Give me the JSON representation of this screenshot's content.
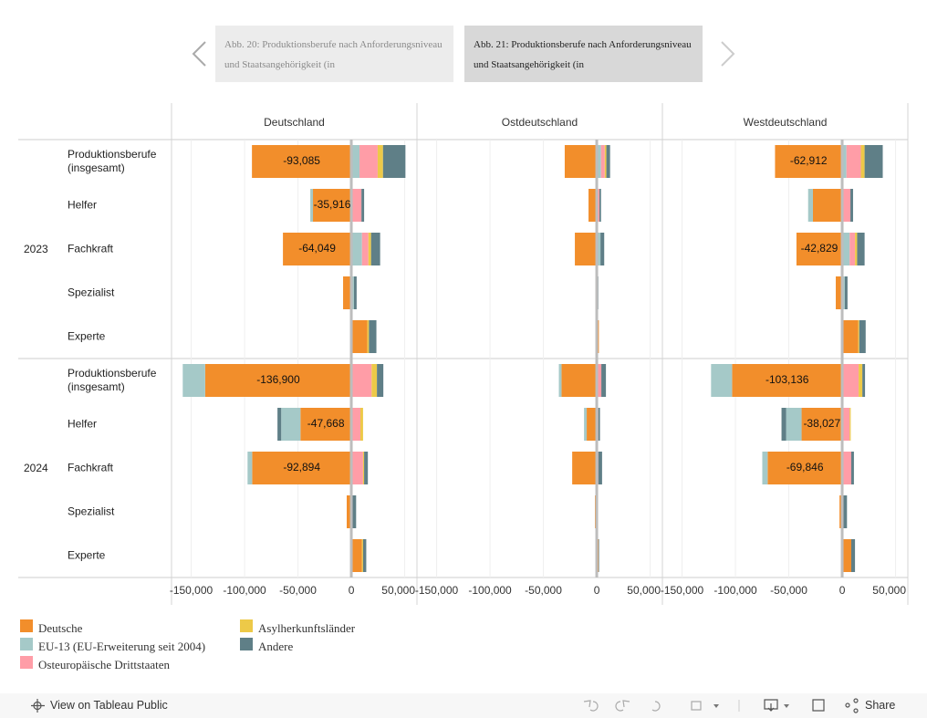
{
  "nav": {
    "tabs": [
      "Abb. 20: Produktionsberufe nach Anforderungsniveau und Staatsangehörigkeit (in",
      "Abb. 21: Produktionsberufe nach Anforderungsniveau und Staatsangehörigkeit (in"
    ]
  },
  "chart_data": {
    "type": "bar",
    "orientation": "horizontal",
    "stacked": true,
    "years": [
      "2023",
      "2024"
    ],
    "categories": [
      "Produktionsberufe (insgesamt)",
      "Helfer",
      "Fachkraft",
      "Spezialist",
      "Experte"
    ],
    "series": [
      {
        "name": "Deutsche",
        "color": "#f28e2b"
      },
      {
        "name": "EU-13 (EU-Erweiterung seit 2004)",
        "color": "#a5c9c8"
      },
      {
        "name": "Osteuropäische Drittstaaten",
        "color": "#ff9da7"
      },
      {
        "name": "Asylherkunftsländer",
        "color": "#edc948"
      },
      {
        "name": "Andere",
        "color": "#5f7f87"
      }
    ],
    "xlim": [
      -168400,
      61500
    ],
    "xticks": [
      {
        "value": -150000,
        "label": "-150,000"
      },
      {
        "value": -100000,
        "label": "-100,000"
      },
      {
        "value": -50000,
        "label": "-50,000"
      },
      0,
      {
        "value": 50000,
        "label": "50,000"
      }
    ],
    "grid": true,
    "panels": [
      {
        "title": "Deutschland",
        "series": [
          {
            "values": [
              -93085,
              -35916,
              -64049,
              -7700,
              15000,
              -136900,
              -47668,
              -92894,
              -4300,
              10000
            ],
            "value_labels": [
              "-93,085",
              "-35,916",
              "-64,049",
              null,
              null,
              "-136,900",
              "-47,668",
              "-92,894",
              null,
              null
            ]
          },
          {
            "values": [
              7700,
              -2500,
              10000,
              2500,
              0,
              -21000,
              -18000,
              -4300,
              1000,
              0
            ]
          },
          {
            "values": [
              17000,
              9500,
              6000,
              0,
              0,
              19000,
              8500,
              11000,
              0,
              0
            ]
          },
          {
            "values": [
              5000,
              0,
              2500,
              0,
              1500,
              5000,
              2500,
              1000,
              0,
              1000
            ]
          },
          {
            "values": [
              21000,
              2500,
              8500,
              2500,
              7000,
              6000,
              -3500,
              3500,
              3500,
              3000
            ]
          }
        ]
      },
      {
        "title": "Ostdeutschland",
        "series": [
          {
            "values": [
              -30000,
              -7700,
              -20500,
              -1000,
              2000,
              -33000,
              -9400,
              -23000,
              -1700,
              1700
            ]
          },
          {
            "values": [
              4000,
              0,
              3500,
              0,
              0,
              -2500,
              -2500,
              0,
              0,
              0
            ]
          },
          {
            "values": [
              3500,
              2500,
              0,
              0,
              0,
              4300,
              1500,
              1500,
              0,
              0
            ]
          },
          {
            "values": [
              1500,
              0,
              0,
              0,
              0,
              0,
              0,
              0,
              0,
              0
            ]
          },
          {
            "values": [
              3500,
              1500,
              3500,
              1500,
              0,
              4300,
              1500,
              3500,
              1000,
              500
            ]
          }
        ]
      },
      {
        "title": "Westdeutschland",
        "series": [
          {
            "values": [
              -62912,
              -27400,
              -42829,
              -6000,
              15000,
              -103136,
              -38027,
              -69846,
              -2500,
              8500
            ],
            "value_labels": [
              "-62,912",
              null,
              "-42,829",
              null,
              null,
              "-103,136",
              "-38,027",
              "-69,846",
              null,
              null
            ]
          },
          {
            "values": [
              4000,
              -4500,
              7000,
              2500,
              0,
              -19700,
              -14500,
              -5000,
              1000,
              0
            ]
          },
          {
            "values": [
              13500,
              7700,
              5000,
              0,
              0,
              15400,
              7000,
              8500,
              0,
              0
            ]
          },
          {
            "values": [
              3500,
              0,
              2000,
              0,
              1000,
              3500,
              1000,
              0,
              0,
              0
            ]
          },
          {
            "values": [
              17000,
              2500,
              7000,
              2500,
              6000,
              2500,
              -4300,
              2500,
              3500,
              3500
            ]
          }
        ]
      }
    ]
  },
  "footer": {
    "link": "View on Tableau Public",
    "share": "Share"
  }
}
